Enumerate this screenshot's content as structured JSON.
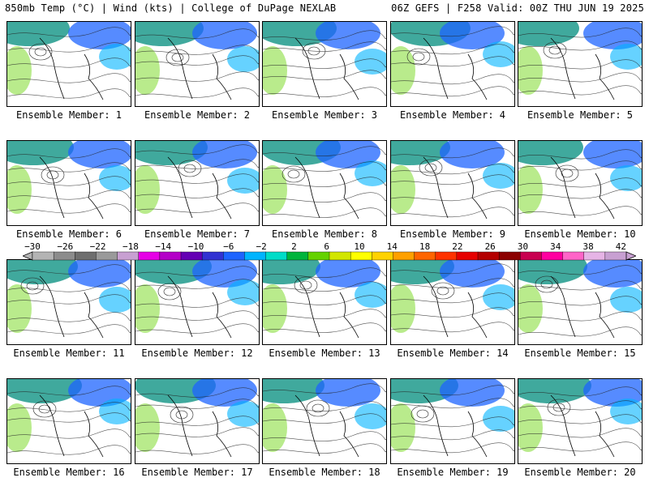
{
  "header": {
    "left": "850mb Temp (°C) | Wind (kts) | College of DuPage NEXLAB",
    "right": "06Z GEFS | F258 Valid: 00Z THU JUN 19 2025"
  },
  "caption_prefix": "Ensemble Member: ",
  "members": [
    {
      "label": "Ensemble Member: 1"
    },
    {
      "label": "Ensemble Member: 2"
    },
    {
      "label": "Ensemble Member: 3"
    },
    {
      "label": "Ensemble Member: 4"
    },
    {
      "label": "Ensemble Member: 5"
    },
    {
      "label": "Ensemble Member: 6"
    },
    {
      "label": "Ensemble Member: 7"
    },
    {
      "label": "Ensemble Member: 8"
    },
    {
      "label": "Ensemble Member: 9"
    },
    {
      "label": "Ensemble Member: 10"
    },
    {
      "label": "Ensemble Member: 11"
    },
    {
      "label": "Ensemble Member: 12"
    },
    {
      "label": "Ensemble Member: 13"
    },
    {
      "label": "Ensemble Member: 14"
    },
    {
      "label": "Ensemble Member: 15"
    },
    {
      "label": "Ensemble Member: 16"
    },
    {
      "label": "Ensemble Member: 17"
    },
    {
      "label": "Ensemble Member: 18"
    },
    {
      "label": "Ensemble Member: 19"
    },
    {
      "label": "Ensemble Member: 20"
    }
  ],
  "colorbar": {
    "tick_labels": [
      "−30",
      "−26",
      "−22",
      "−18",
      "−14",
      "−10",
      "−6",
      "−2",
      "2",
      "6",
      "10",
      "14",
      "18",
      "22",
      "26",
      "30",
      "34",
      "38",
      "42"
    ],
    "colors": [
      "#b4b4b4",
      "#8c8c8c",
      "#6e6e6e",
      "#9a9a9a",
      "#c8a0d2",
      "#e600e6",
      "#b400c8",
      "#6400b4",
      "#3232d2",
      "#1e64ff",
      "#00b4ff",
      "#00dcc8",
      "#00b43c",
      "#64d200",
      "#d2e600",
      "#ffff00",
      "#ffd200",
      "#ffa000",
      "#ff6400",
      "#ff3200",
      "#e60000",
      "#b40000",
      "#8c0000",
      "#c80050",
      "#ff00a0",
      "#ff64c8",
      "#e6b4e6",
      "#c8a0d2"
    ]
  }
}
